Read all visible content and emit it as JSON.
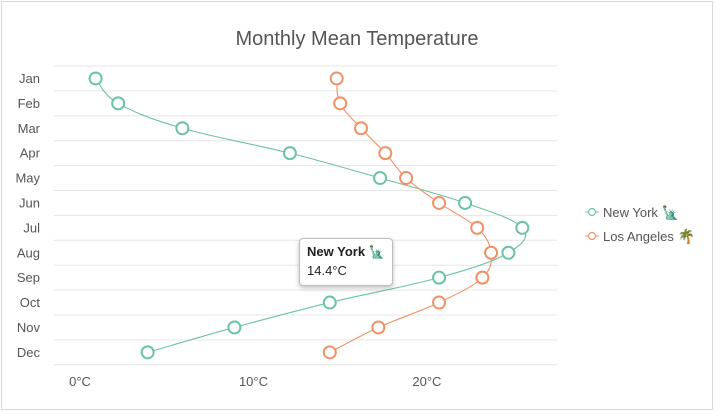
{
  "chart_data": {
    "type": "line",
    "title": "Monthly Mean Temperature",
    "orientation": "horizontal-values",
    "categories": [
      "Jan",
      "Feb",
      "Mar",
      "Apr",
      "May",
      "Jun",
      "Jul",
      "Aug",
      "Sep",
      "Oct",
      "Nov",
      "Dec"
    ],
    "xlim": [
      -1.5,
      27.5
    ],
    "x_ticks": [
      "0°C",
      "10°C",
      "20°C"
    ],
    "x_tick_values": [
      0,
      10,
      20
    ],
    "grid": true,
    "legend_position": "right",
    "series": [
      {
        "name": "New York",
        "emoji": "🗽",
        "color": "#6cc3a3",
        "values": [
          0.9,
          2.2,
          5.9,
          12.1,
          17.3,
          22.2,
          25.5,
          24.7,
          20.7,
          14.4,
          8.9,
          3.9
        ]
      },
      {
        "name": "Los Angeles",
        "emoji": "🌴",
        "color": "#f19166",
        "values": [
          14.8,
          15.0,
          16.2,
          17.6,
          18.8,
          20.7,
          22.9,
          23.7,
          23.2,
          20.7,
          17.2,
          14.4
        ]
      }
    ],
    "tooltip": {
      "title": "New York",
      "emoji": "🗽",
      "value": "14.4°C"
    }
  }
}
